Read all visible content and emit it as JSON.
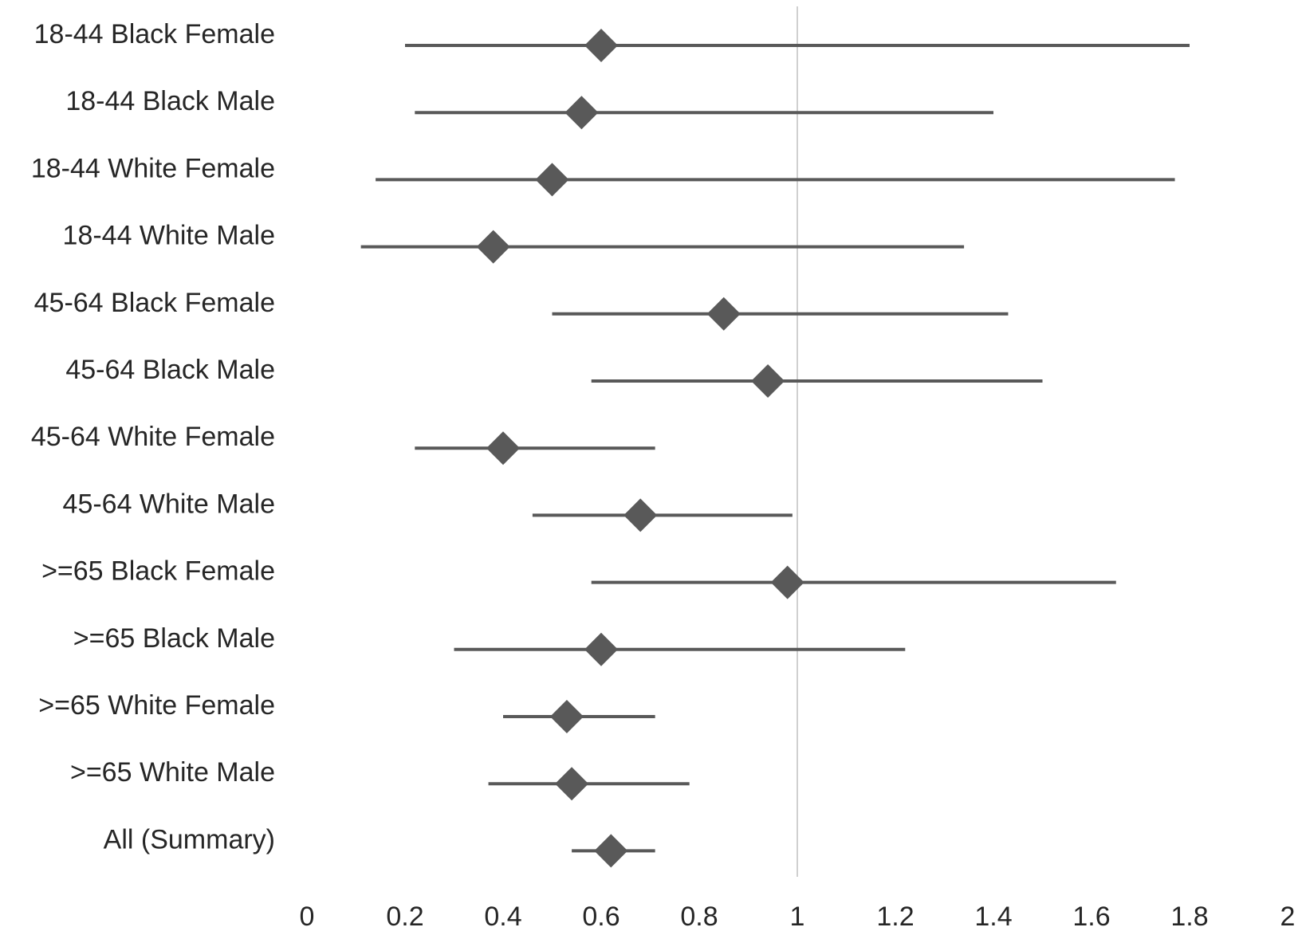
{
  "chart_data": {
    "type": "scatter",
    "subtype": "forest-plot",
    "title": "",
    "xlabel": "",
    "ylabel": "",
    "xlim": [
      0,
      2
    ],
    "x_ticks": [
      "0",
      "0.2",
      "0.4",
      "0.6",
      "0.8",
      "1",
      "1.2",
      "1.4",
      "1.6",
      "1.8",
      "2"
    ],
    "reference_line_x": 1,
    "grid": false,
    "marker": "diamond",
    "colors": {
      "marker": "#595959",
      "ci_line": "#595959",
      "reference_line": "#d0d0d0",
      "text": "#262626"
    },
    "rows": [
      {
        "label": "18-44 Black Female",
        "estimate": 0.6,
        "lower": 0.2,
        "upper": 1.8
      },
      {
        "label": "18-44 Black Male",
        "estimate": 0.56,
        "lower": 0.22,
        "upper": 1.4
      },
      {
        "label": "18-44 White Female",
        "estimate": 0.5,
        "lower": 0.14,
        "upper": 1.77
      },
      {
        "label": "18-44 White Male",
        "estimate": 0.38,
        "lower": 0.11,
        "upper": 1.34
      },
      {
        "label": "45-64 Black Female",
        "estimate": 0.85,
        "lower": 0.5,
        "upper": 1.43
      },
      {
        "label": "45-64 Black Male",
        "estimate": 0.94,
        "lower": 0.58,
        "upper": 1.5
      },
      {
        "label": "45-64 White Female",
        "estimate": 0.4,
        "lower": 0.22,
        "upper": 0.71
      },
      {
        "label": "45-64 White Male",
        "estimate": 0.68,
        "lower": 0.46,
        "upper": 0.99
      },
      {
        "label": ">=65 Black Female",
        "estimate": 0.98,
        "lower": 0.58,
        "upper": 1.65
      },
      {
        "label": ">=65 Black Male",
        "estimate": 0.6,
        "lower": 0.3,
        "upper": 1.22
      },
      {
        "label": ">=65 White Female",
        "estimate": 0.53,
        "lower": 0.4,
        "upper": 0.71
      },
      {
        "label": ">=65 White Male",
        "estimate": 0.54,
        "lower": 0.37,
        "upper": 0.78
      },
      {
        "label": "All (Summary)",
        "estimate": 0.62,
        "lower": 0.54,
        "upper": 0.71
      }
    ]
  }
}
